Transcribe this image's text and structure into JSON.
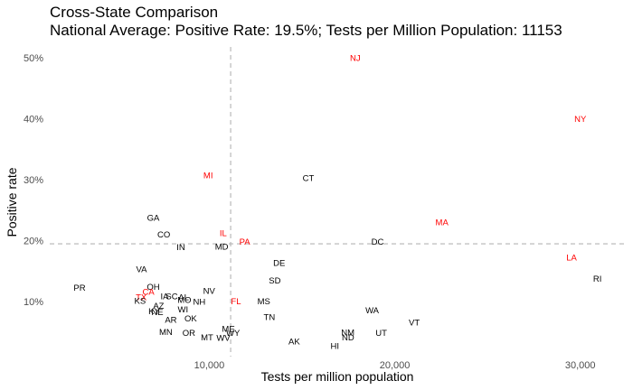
{
  "chart_data": {
    "type": "scatter",
    "title": "Cross-State Comparison",
    "subtitle": "National Average: Positive Rate: 19.5%; Tests per Million Population: 11153",
    "xlabel": "Tests per million population",
    "ylabel": "Positive rate",
    "xlim": [
      1400,
      32500
    ],
    "ylim": [
      1.0,
      51.8
    ],
    "x_ticks": [
      {
        "value": 10000,
        "label": "10,000"
      },
      {
        "value": 20000,
        "label": "20,000"
      },
      {
        "value": 30000,
        "label": "30,000"
      }
    ],
    "y_ticks": [
      {
        "value": 10,
        "label": "10%"
      },
      {
        "value": 20,
        "label": "20%"
      },
      {
        "value": 30,
        "label": "30%"
      },
      {
        "value": 40,
        "label": "40%"
      },
      {
        "value": 50,
        "label": "50%"
      }
    ],
    "reference_lines": {
      "x": 11153,
      "y": 19.5
    },
    "grid": false,
    "colors": {
      "highlight": "#ff0000",
      "normal": "#000000",
      "reference": "#b3b3b3"
    },
    "points": [
      {
        "label": "NJ",
        "x": 17870,
        "y": 50.0,
        "highlight": true
      },
      {
        "label": "NY",
        "x": 30000,
        "y": 40.0,
        "highlight": true
      },
      {
        "label": "MI",
        "x": 9940,
        "y": 30.8,
        "highlight": true
      },
      {
        "label": "CT",
        "x": 15340,
        "y": 30.3,
        "highlight": false
      },
      {
        "label": "MA",
        "x": 22540,
        "y": 23.1,
        "highlight": true
      },
      {
        "label": "GA",
        "x": 6980,
        "y": 23.8,
        "highlight": false
      },
      {
        "label": "IL",
        "x": 10750,
        "y": 21.3,
        "highlight": true
      },
      {
        "label": "PA",
        "x": 11910,
        "y": 19.9,
        "highlight": true
      },
      {
        "label": "CO",
        "x": 7550,
        "y": 21.1,
        "highlight": false
      },
      {
        "label": "DC",
        "x": 19070,
        "y": 19.9,
        "highlight": false
      },
      {
        "label": "IN",
        "x": 8470,
        "y": 19.0,
        "highlight": false
      },
      {
        "label": "MD",
        "x": 10670,
        "y": 19.1,
        "highlight": false
      },
      {
        "label": "LA",
        "x": 29530,
        "y": 17.3,
        "highlight": true
      },
      {
        "label": "DE",
        "x": 13770,
        "y": 16.4,
        "highlight": false
      },
      {
        "label": "VA",
        "x": 6350,
        "y": 15.4,
        "highlight": false
      },
      {
        "label": "SD",
        "x": 13530,
        "y": 13.5,
        "highlight": false
      },
      {
        "label": "RI",
        "x": 30920,
        "y": 13.8,
        "highlight": false
      },
      {
        "label": "PR",
        "x": 3010,
        "y": 12.3,
        "highlight": false
      },
      {
        "label": "OH",
        "x": 6980,
        "y": 12.5,
        "highlight": false
      },
      {
        "label": "CA",
        "x": 6720,
        "y": 11.7,
        "highlight": true
      },
      {
        "label": "NV",
        "x": 9990,
        "y": 11.8,
        "highlight": false
      },
      {
        "label": "IA",
        "x": 7590,
        "y": 10.9,
        "highlight": false
      },
      {
        "label": "SC",
        "x": 7980,
        "y": 10.9,
        "highlight": false
      },
      {
        "label": "AL",
        "x": 8620,
        "y": 10.8,
        "highlight": false
      },
      {
        "label": "TX",
        "x": 6330,
        "y": 10.8,
        "highlight": true
      },
      {
        "label": "KS",
        "x": 6270,
        "y": 10.2,
        "highlight": false
      },
      {
        "label": "MO",
        "x": 8660,
        "y": 10.3,
        "highlight": false
      },
      {
        "label": "NH",
        "x": 9460,
        "y": 10.0,
        "highlight": false
      },
      {
        "label": "FL",
        "x": 11440,
        "y": 10.1,
        "highlight": true
      },
      {
        "label": "MS",
        "x": 12940,
        "y": 10.1,
        "highlight": false
      },
      {
        "label": "AZ",
        "x": 7270,
        "y": 9.4,
        "highlight": false
      },
      {
        "label": "WI",
        "x": 8580,
        "y": 8.8,
        "highlight": false
      },
      {
        "label": "WA",
        "x": 18780,
        "y": 8.6,
        "highlight": false
      },
      {
        "label": "KY",
        "x": 7030,
        "y": 8.5,
        "highlight": false
      },
      {
        "label": "NE",
        "x": 7200,
        "y": 8.3,
        "highlight": false
      },
      {
        "label": "TN",
        "x": 13240,
        "y": 7.5,
        "highlight": false
      },
      {
        "label": "OK",
        "x": 9000,
        "y": 7.3,
        "highlight": false
      },
      {
        "label": "AR",
        "x": 7930,
        "y": 7.1,
        "highlight": false
      },
      {
        "label": "VT",
        "x": 21050,
        "y": 6.6,
        "highlight": false
      },
      {
        "label": "ME",
        "x": 11030,
        "y": 5.6,
        "highlight": false
      },
      {
        "label": "MN",
        "x": 7660,
        "y": 5.1,
        "highlight": false
      },
      {
        "label": "OR",
        "x": 8900,
        "y": 4.9,
        "highlight": false
      },
      {
        "label": "NM",
        "x": 17470,
        "y": 5.0,
        "highlight": false
      },
      {
        "label": "WY",
        "x": 11280,
        "y": 4.9,
        "highlight": false
      },
      {
        "label": "UT",
        "x": 19270,
        "y": 4.9,
        "highlight": false
      },
      {
        "label": "ND",
        "x": 17480,
        "y": 4.2,
        "highlight": false
      },
      {
        "label": "MT",
        "x": 9880,
        "y": 4.2,
        "highlight": false
      },
      {
        "label": "WV",
        "x": 10760,
        "y": 4.1,
        "highlight": false
      },
      {
        "label": "AK",
        "x": 14580,
        "y": 3.5,
        "highlight": false
      },
      {
        "label": "HI",
        "x": 16770,
        "y": 2.8,
        "highlight": false
      }
    ]
  }
}
